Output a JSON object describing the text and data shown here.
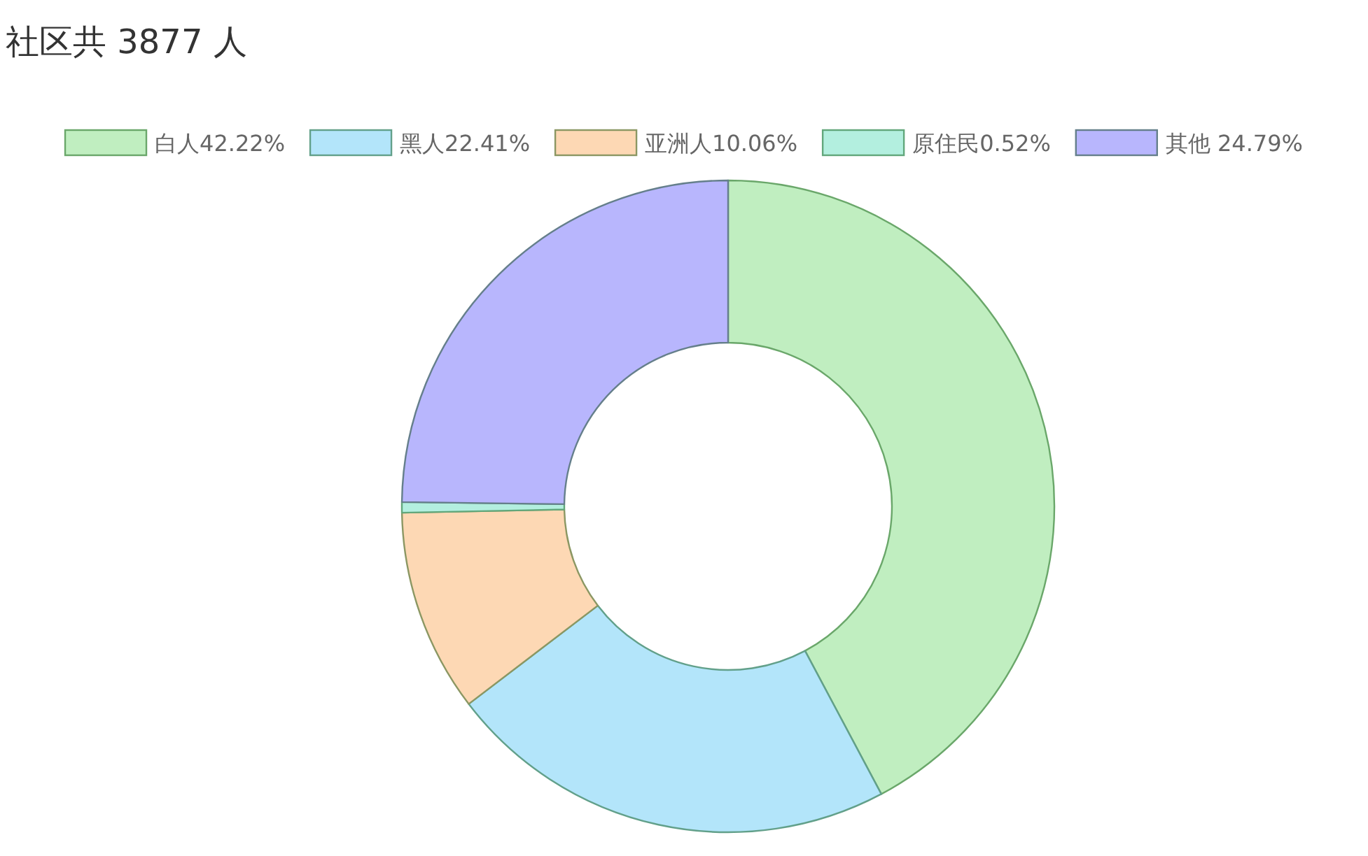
{
  "chart_data": {
    "type": "donut",
    "title": "社区共 3877 人",
    "categories": [
      "白人42.22%",
      "黑人22.41%",
      "亚洲人10.06%",
      "原住民0.52%",
      "其他 24.79%"
    ],
    "values": [
      42.22,
      22.41,
      10.06,
      0.52,
      24.79
    ],
    "colors": [
      "#c0eec0",
      "#b3e5fa",
      "#fdd8b4",
      "#b3efdf",
      "#b8b6fd"
    ],
    "legend": "top"
  }
}
